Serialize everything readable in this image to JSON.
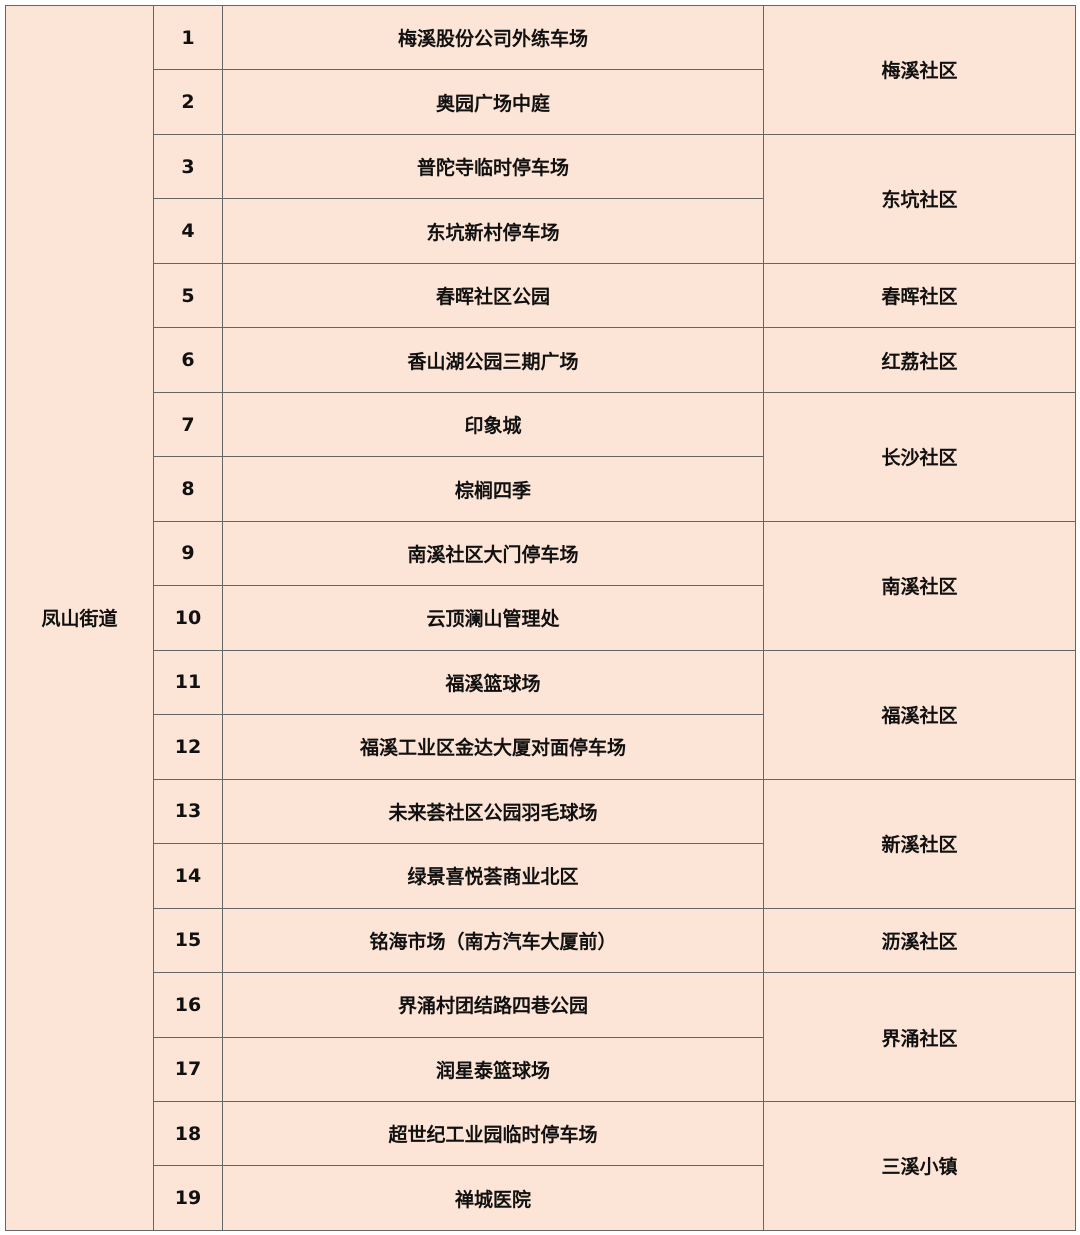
{
  "table": {
    "district": "凤山街道",
    "groups": [
      {
        "community": "梅溪社区",
        "sites": [
          {
            "no": 1,
            "name": "梅溪股份公司外练车场"
          },
          {
            "no": 2,
            "name": "奥园广场中庭"
          }
        ]
      },
      {
        "community": "东坑社区",
        "sites": [
          {
            "no": 3,
            "name": "普陀寺临时停车场"
          },
          {
            "no": 4,
            "name": "东坑新村停车场"
          }
        ]
      },
      {
        "community": "春晖社区",
        "sites": [
          {
            "no": 5,
            "name": "春晖社区公园"
          }
        ]
      },
      {
        "community": "红荔社区",
        "sites": [
          {
            "no": 6,
            "name": "香山湖公园三期广场"
          }
        ]
      },
      {
        "community": "长沙社区",
        "sites": [
          {
            "no": 7,
            "name": "印象城"
          },
          {
            "no": 8,
            "name": "棕榈四季"
          }
        ]
      },
      {
        "community": "南溪社区",
        "sites": [
          {
            "no": 9,
            "name": "南溪社区大门停车场"
          },
          {
            "no": 10,
            "name": "云顶澜山管理处"
          }
        ]
      },
      {
        "community": "福溪社区",
        "sites": [
          {
            "no": 11,
            "name": "福溪篮球场"
          },
          {
            "no": 12,
            "name": "福溪工业区金达大厦对面停车场"
          }
        ]
      },
      {
        "community": "新溪社区",
        "sites": [
          {
            "no": 13,
            "name": "未来荟社区公园羽毛球场"
          },
          {
            "no": 14,
            "name": "绿景喜悦荟商业北区"
          }
        ]
      },
      {
        "community": "沥溪社区",
        "sites": [
          {
            "no": 15,
            "name": "铭海市场（南方汽车大厦前）"
          }
        ]
      },
      {
        "community": "界涌社区",
        "sites": [
          {
            "no": 16,
            "name": "界涌村团结路四巷公园"
          },
          {
            "no": 17,
            "name": "润星泰篮球场"
          }
        ]
      },
      {
        "community": "三溪小镇",
        "sites": [
          {
            "no": 18,
            "name": "超世纪工业园临时停车场"
          },
          {
            "no": 19,
            "name": "禅城医院"
          }
        ]
      }
    ]
  }
}
